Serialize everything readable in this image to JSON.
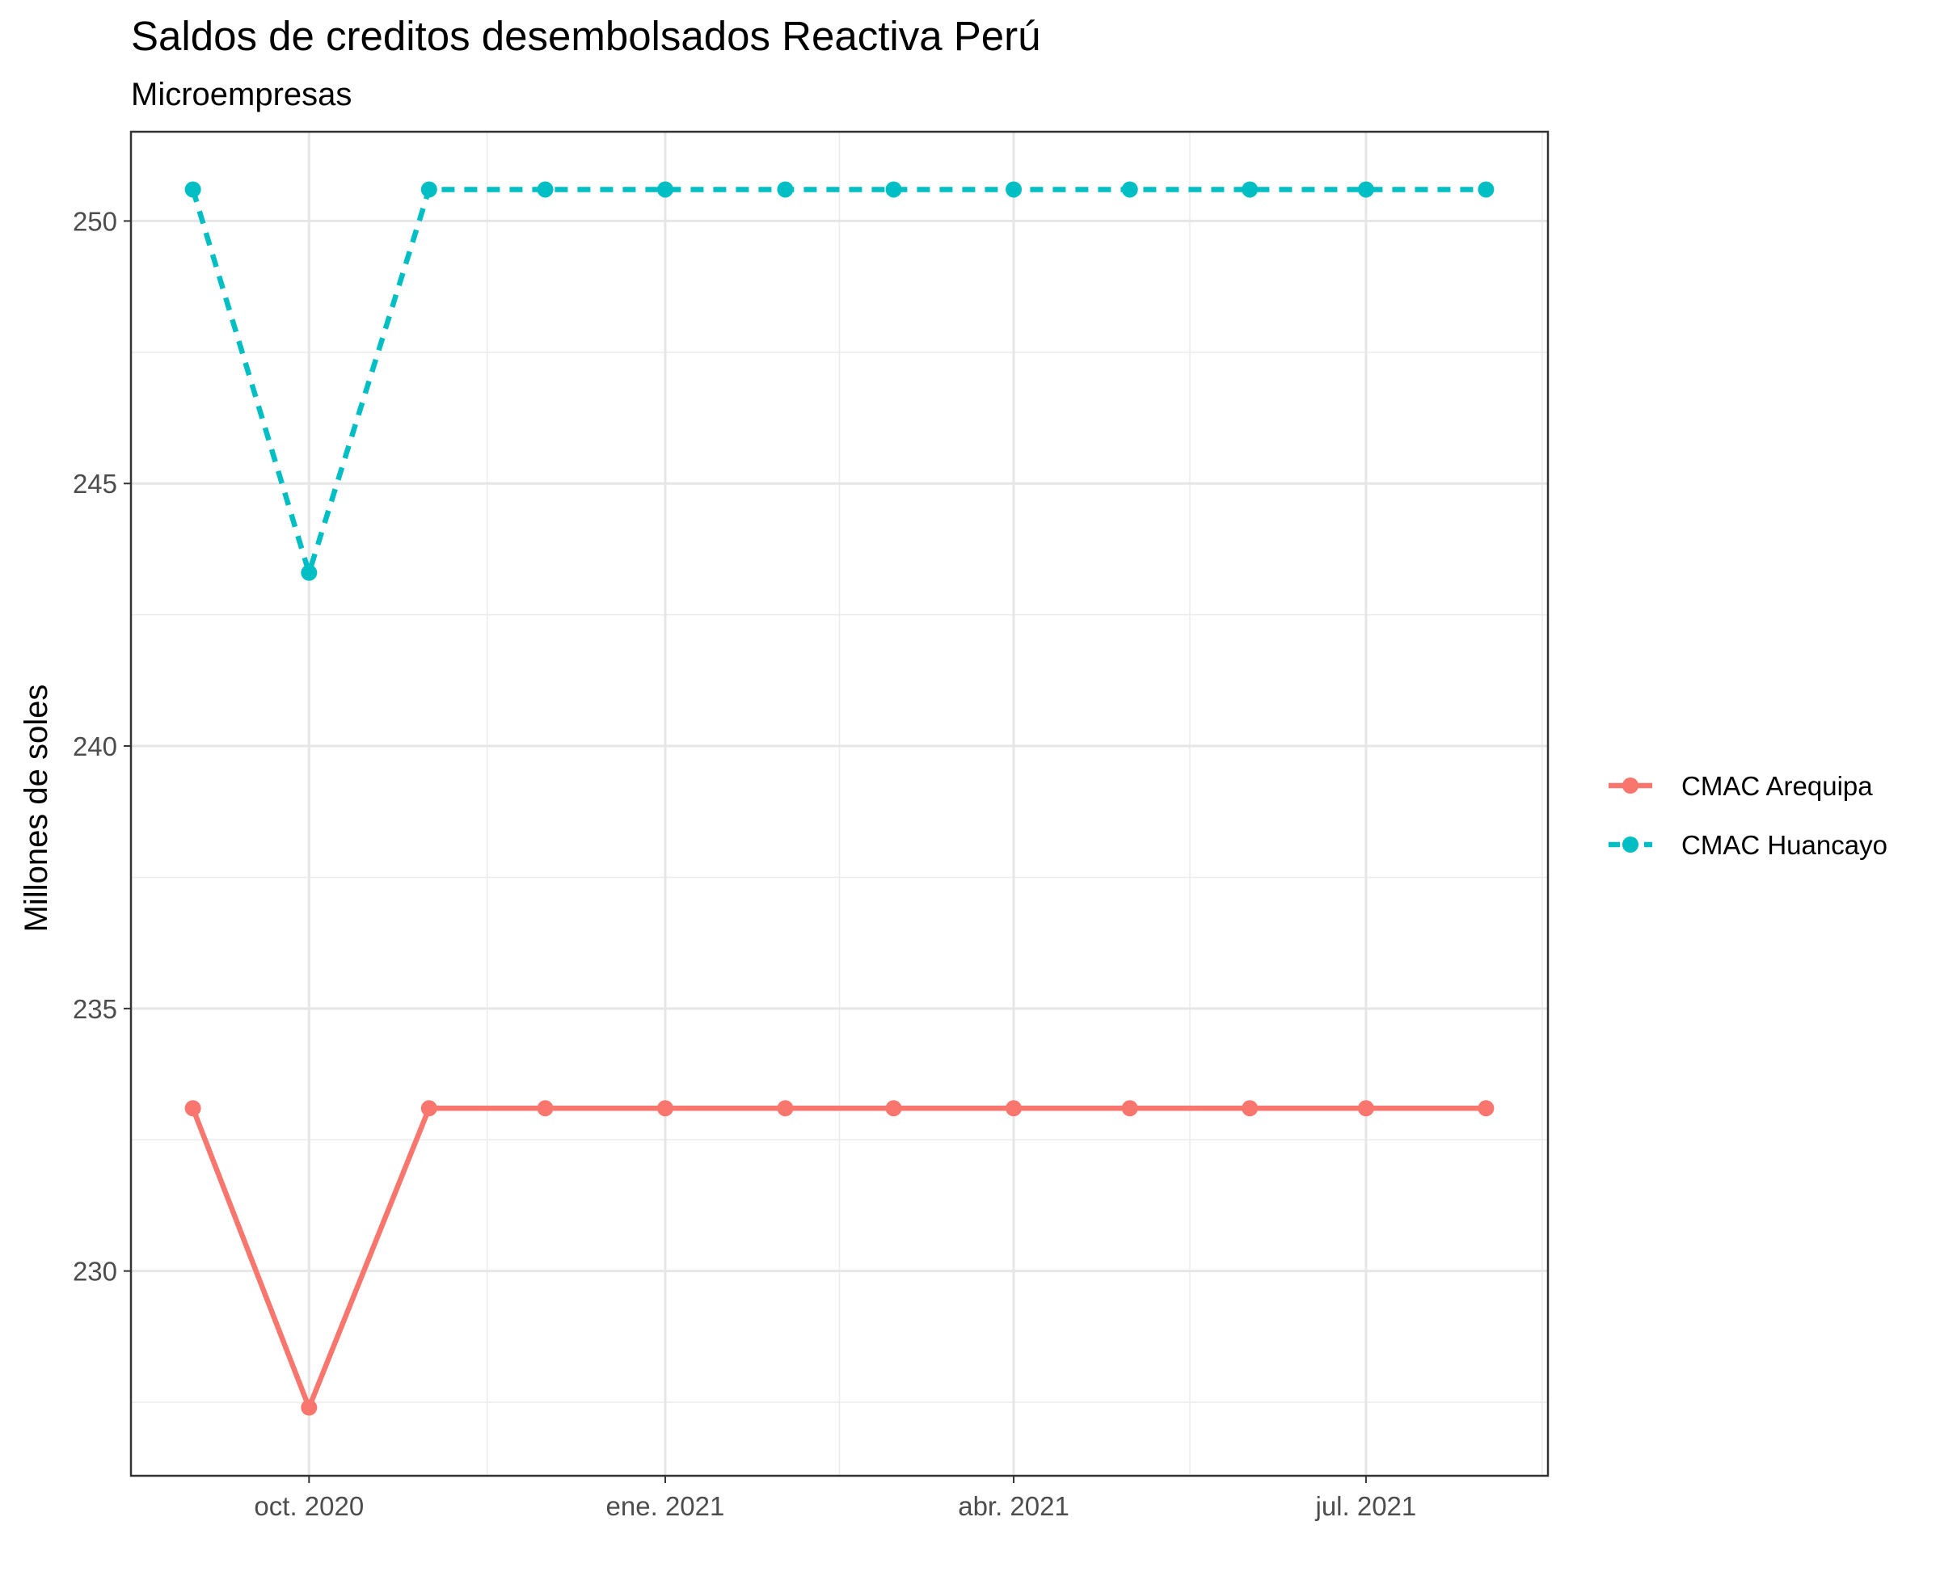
{
  "chart_data": {
    "type": "line",
    "title": "Saldos de creditos desembolsados Reactiva Perú",
    "subtitle": "Microempresas",
    "xlabel": "",
    "ylabel": "Millones de soles",
    "x": [
      "2020-09-01",
      "2020-10-01",
      "2020-11-01",
      "2020-12-01",
      "2021-01-01",
      "2021-02-01",
      "2021-03-01",
      "2021-04-01",
      "2021-05-01",
      "2021-06-01",
      "2021-07-01",
      "2021-08-01"
    ],
    "x_ticks": [
      {
        "date": "2020-10-01",
        "label": "oct. 2020"
      },
      {
        "date": "2021-01-01",
        "label": "ene. 2021"
      },
      {
        "date": "2021-04-01",
        "label": "abr. 2021"
      },
      {
        "date": "2021-07-01",
        "label": "jul. 2021"
      }
    ],
    "xlim": [
      "2020-08-16",
      "2021-08-17"
    ],
    "ylim": [
      226.1,
      251.7
    ],
    "y_ticks": [
      230,
      235,
      240,
      245,
      250
    ],
    "grid": true,
    "legend_position": "right",
    "series": [
      {
        "name": "CMAC Arequipa",
        "color": "#F8766D",
        "line_style": "solid",
        "values": [
          233.1,
          227.4,
          233.1,
          233.1,
          233.1,
          233.1,
          233.1,
          233.1,
          233.1,
          233.1,
          233.1,
          233.1
        ]
      },
      {
        "name": "CMAC Huancayo",
        "color": "#00BFC4",
        "line_style": "dashed",
        "values": [
          250.6,
          243.3,
          250.6,
          250.6,
          250.6,
          250.6,
          250.6,
          250.6,
          250.6,
          250.6,
          250.6,
          250.6
        ]
      }
    ]
  }
}
